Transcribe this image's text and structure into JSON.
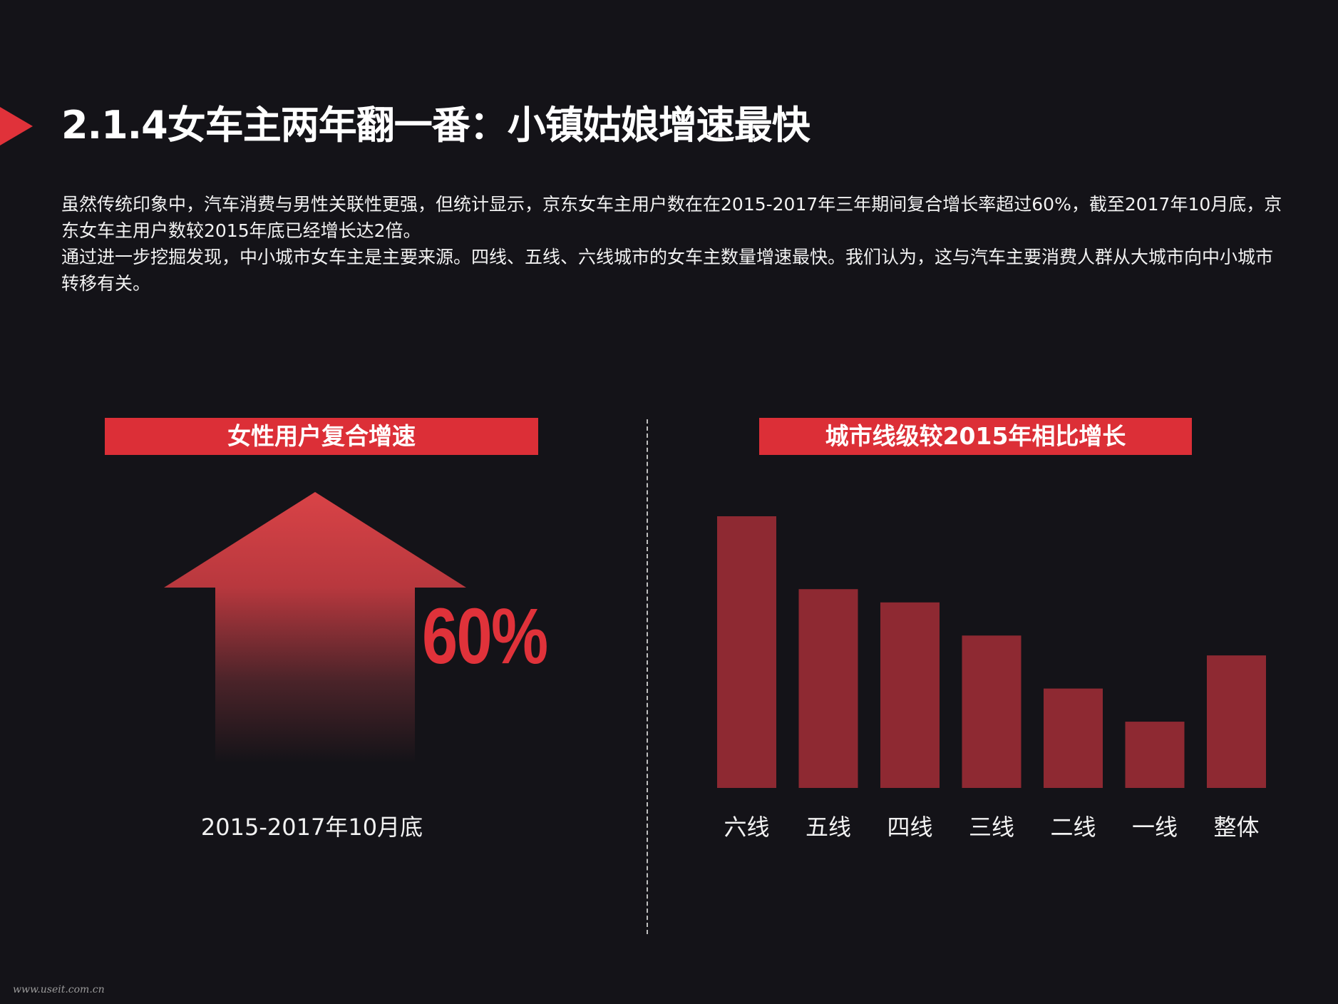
{
  "page": {
    "title": "2.1.4女车主两年翻一番：小镇姑娘增速最快",
    "paragraphs": [
      "虽然传统印象中，汽车消费与男性关联性更强，但统计显示，京东女车主用户数在在2015-2017年三年期间复合增长率超过60%，截至2017年10月底，京东女车主用户数较2015年底已经增长达2倍。",
      "通过进一步挖掘发现，中小城市女车主是主要来源。四线、五线、六线城市的女车主数量增速最快。我们认为，这与汽车主要消费人群从大城市向中小城市转移有关。"
    ],
    "left_panel": {
      "header": "女性用户复合增速",
      "value": "60%",
      "period": "2015-2017年10月底"
    },
    "right_panel": {
      "header": "城市线级较2015年相比增长"
    },
    "footer": "www.useit.com.cn",
    "colors": {
      "background": "#141318",
      "accent": "#e0323a",
      "bar": "#8e2932"
    }
  },
  "chart_data": {
    "type": "bar",
    "categories": [
      "六线",
      "五线",
      "四线",
      "三线",
      "二线",
      "一线",
      "整体"
    ],
    "values": [
      4.1,
      3.0,
      2.8,
      2.3,
      1.5,
      1.0,
      2.0
    ],
    "title": "城市线级较2015年相比增长",
    "xlabel": "",
    "ylabel": "",
    "ylim": [
      0,
      4.1
    ],
    "grid": false,
    "value_labels_shown": false,
    "note": "No axis or value labels are printed; values are relative bar heights."
  }
}
